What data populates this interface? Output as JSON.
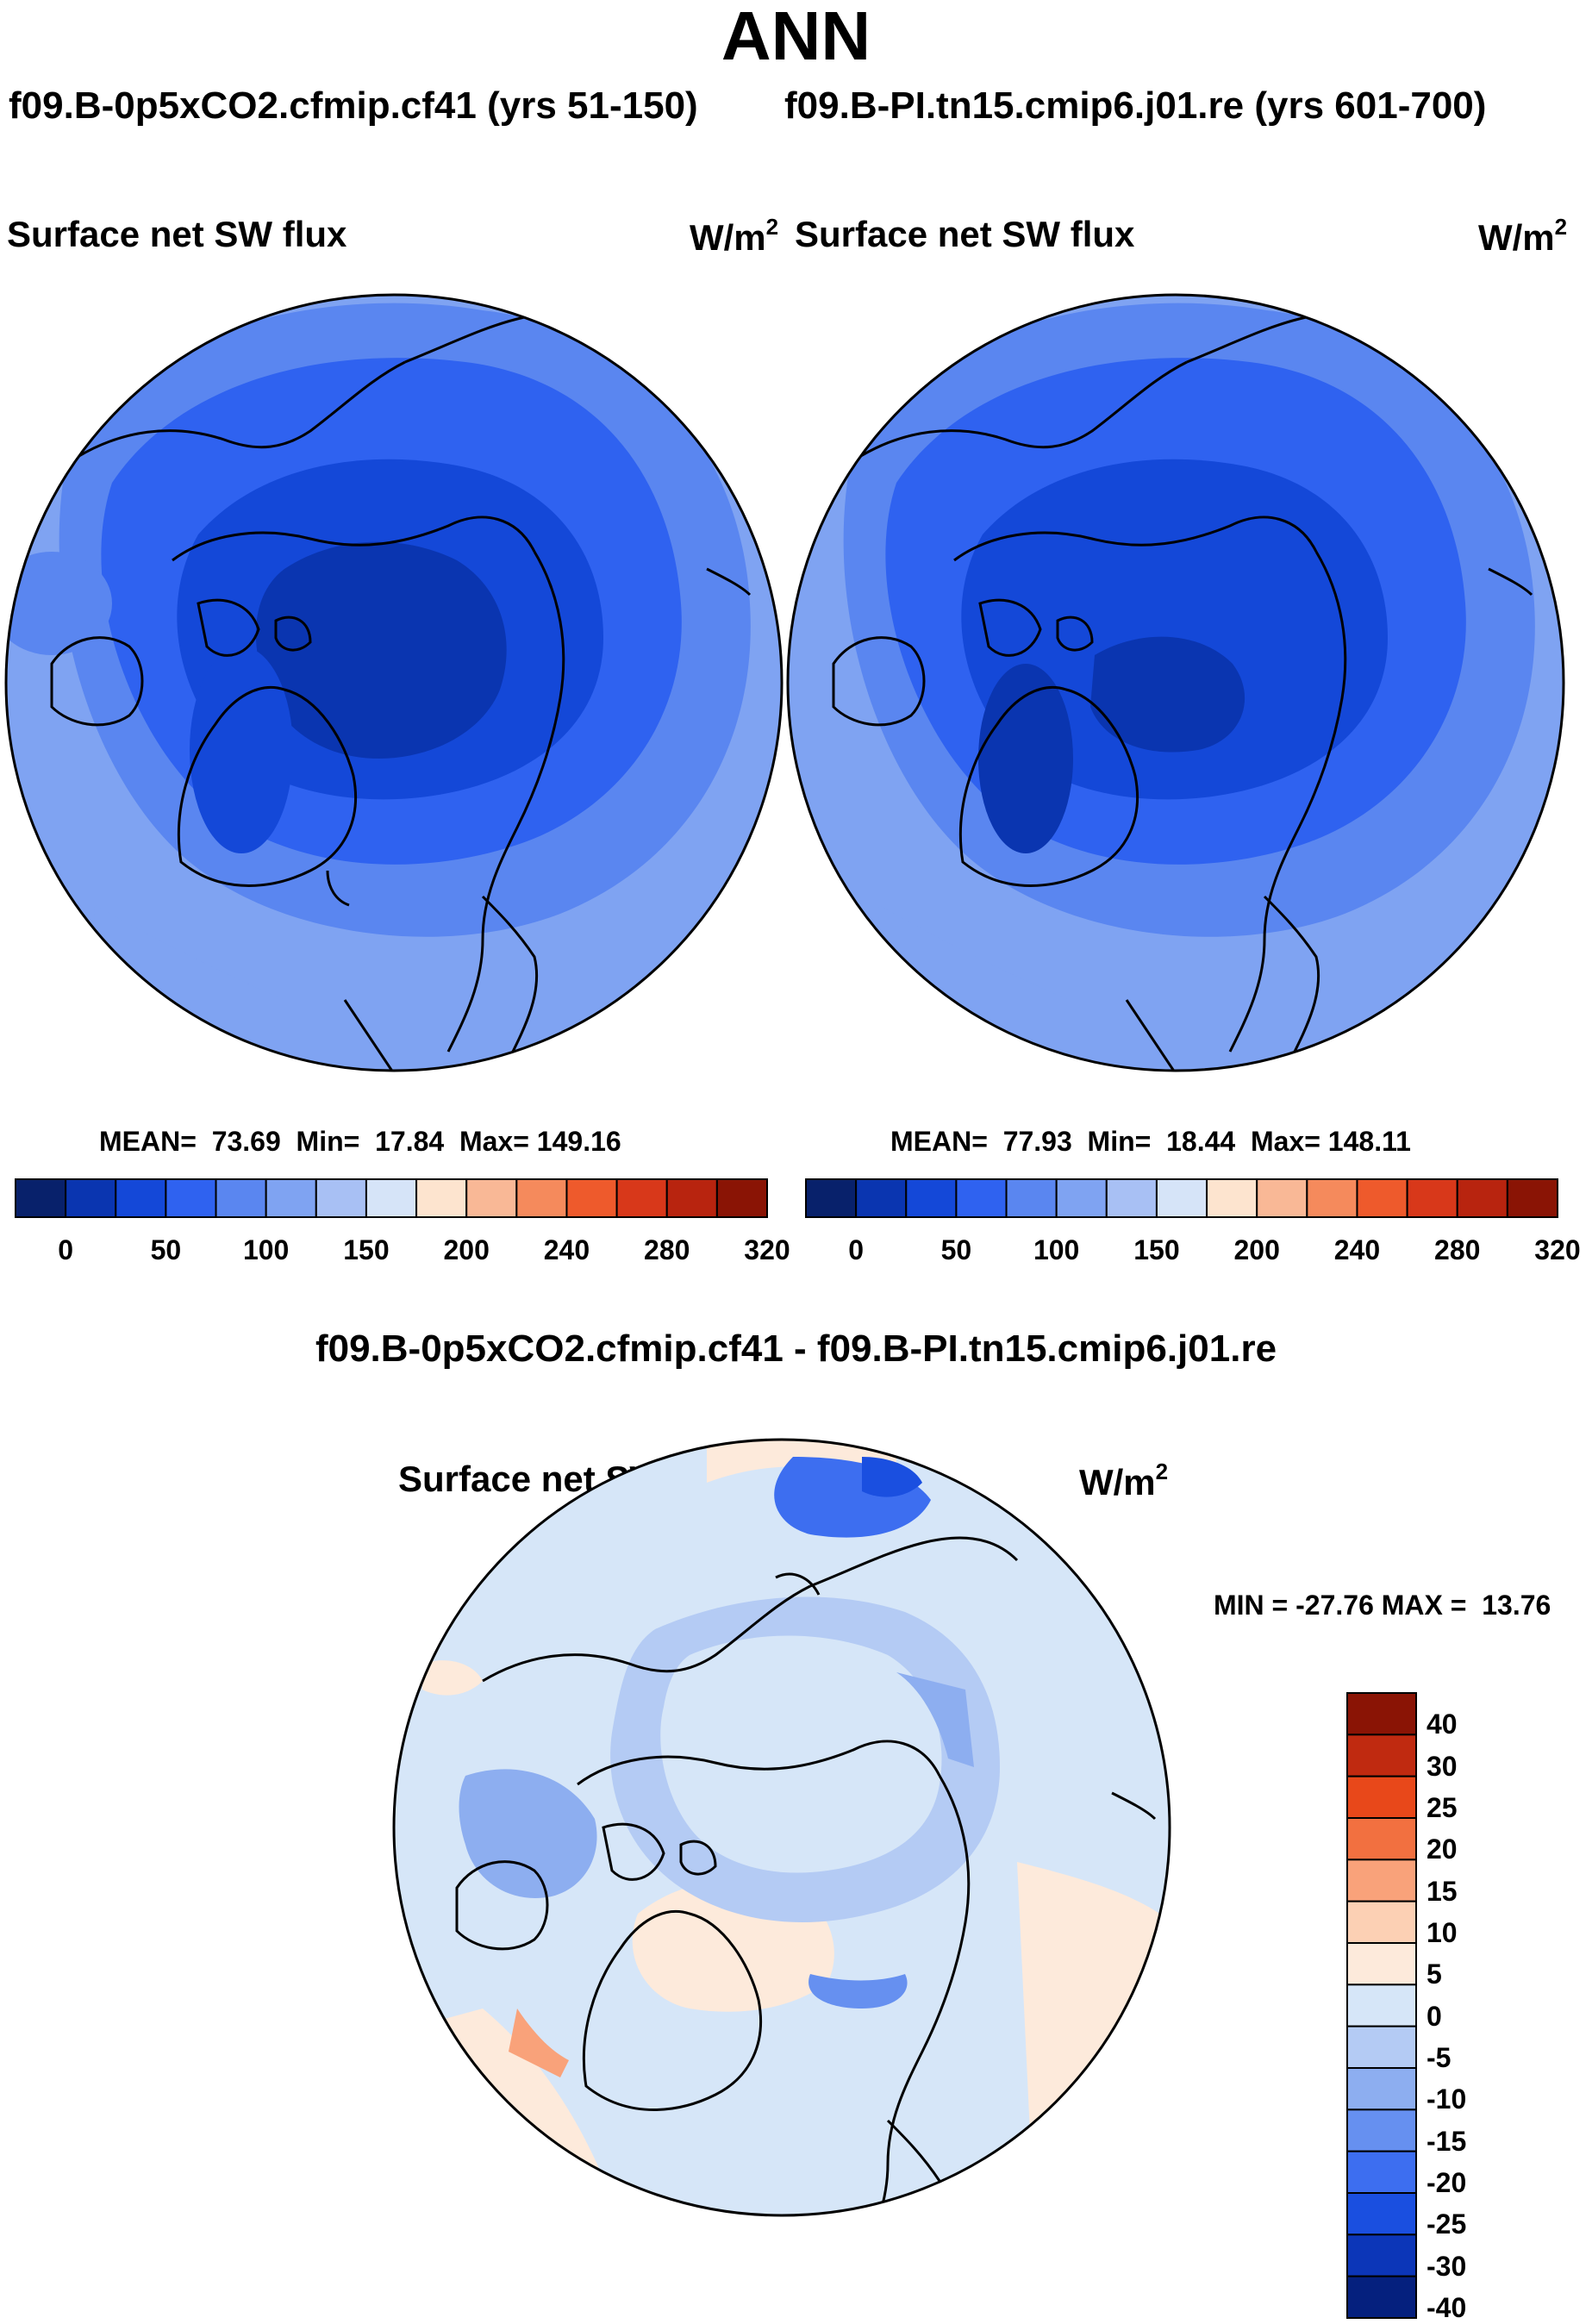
{
  "header": {
    "main_title": "ANN",
    "case_left": "f09.B-0p5xCO2.cfmip.cf41 (yrs 51-150)",
    "case_right": "f09.B-PI.tn15.cmip6.j01.re (yrs 601-700)",
    "diff_title": "f09.B-0p5xCO2.cfmip.cf41 - f09.B-PI.tn15.cmip6.j01.re"
  },
  "panels": {
    "left": {
      "variable": "Surface net SW flux",
      "units_base": "W/m",
      "units_exp": "2",
      "mean_label": "MEAN=",
      "mean": "73.69",
      "min_label": "Min=",
      "min": "17.84",
      "max_label": "Max=",
      "max": "149.16"
    },
    "right": {
      "variable": "Surface net SW flux",
      "units_base": "W/m",
      "units_exp": "2",
      "mean_label": "MEAN=",
      "mean": "77.93",
      "min_label": "Min=",
      "min": "18.44",
      "max_label": "Max=",
      "max": "148.11"
    },
    "diff": {
      "variable": "Surface net SW flux",
      "units_base": "W/m",
      "units_exp": "2",
      "min_label": "MIN =",
      "min": "-27.76",
      "max_label": "MAX =",
      "max": "13.76"
    }
  },
  "colorbar_abs": {
    "colors": [
      "#08216b",
      "#0a35b0",
      "#1448d8",
      "#2f62f0",
      "#5a86f0",
      "#7fa3f2",
      "#a8c0f4",
      "#d6e4f8",
      "#fde4cf",
      "#f9b896",
      "#f58a5c",
      "#ee5a2c",
      "#d8381a",
      "#b8240f",
      "#8a1405"
    ],
    "tick_labels": [
      "0",
      "50",
      "100",
      "150",
      "200",
      "240",
      "280",
      "320"
    ]
  },
  "colorbar_diff": {
    "colors": [
      "#8a1405",
      "#c02a10",
      "#e8481a",
      "#f27040",
      "#f9a27a",
      "#fcd0b4",
      "#fdeadb",
      "#d6e6f8",
      "#b4cbf4",
      "#8daef0",
      "#6690f0",
      "#3d6ef0",
      "#1a4fe0",
      "#0c36b8",
      "#05207e"
    ],
    "tick_labels": [
      "40",
      "30",
      "25",
      "20",
      "15",
      "10",
      "5",
      "0",
      "-5",
      "-10",
      "-15",
      "-20",
      "-25",
      "-30",
      "-40"
    ]
  },
  "chart_data": [
    {
      "type": "heatmap",
      "title": "Surface net SW flux",
      "subtitle": "f09.B-0p5xCO2.cfmip.cf41 (yrs 51-150)",
      "projection": "north polar stereographic",
      "units": "W/m2",
      "mean": 73.69,
      "min": 17.84,
      "max": 149.16,
      "color_levels": [
        0,
        50,
        100,
        150,
        200,
        240,
        280,
        320
      ]
    },
    {
      "type": "heatmap",
      "title": "Surface net SW flux",
      "subtitle": "f09.B-PI.tn15.cmip6.j01.re (yrs 601-700)",
      "projection": "north polar stereographic",
      "units": "W/m2",
      "mean": 77.93,
      "min": 18.44,
      "max": 148.11,
      "color_levels": [
        0,
        50,
        100,
        150,
        200,
        240,
        280,
        320
      ]
    },
    {
      "type": "heatmap",
      "title": "Surface net SW flux",
      "subtitle": "f09.B-0p5xCO2.cfmip.cf41 - f09.B-PI.tn15.cmip6.j01.re",
      "projection": "north polar stereographic",
      "units": "W/m2",
      "min": -27.76,
      "max": 13.76,
      "color_levels": [
        -40,
        -30,
        -25,
        -20,
        -15,
        -10,
        -5,
        0,
        5,
        10,
        15,
        20,
        25,
        30,
        40
      ]
    }
  ]
}
